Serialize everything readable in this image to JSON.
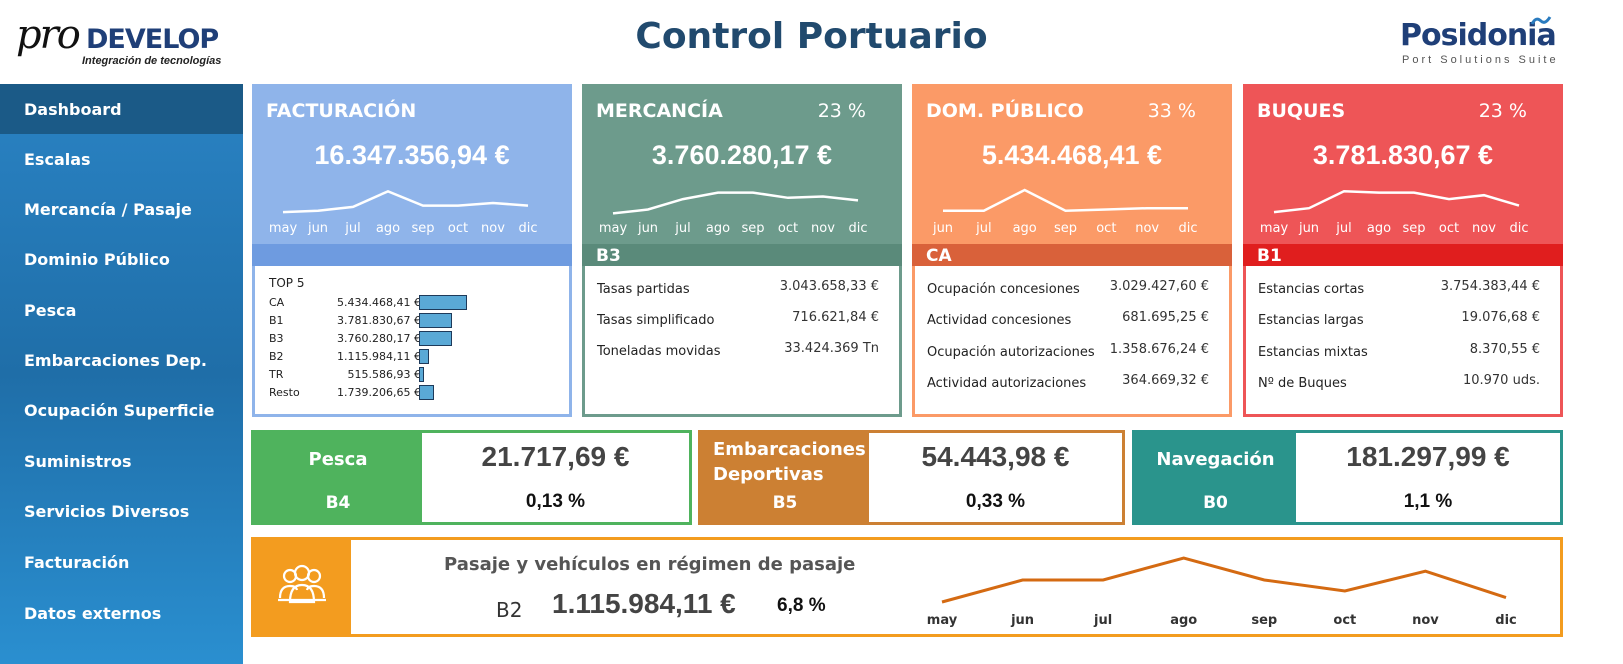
{
  "header": {
    "title": "Control Portuario",
    "logo_left_main": "pro",
    "logo_left_brand": "DEVELOP",
    "logo_left_sub": "Integración de tecnologías",
    "logo_right_main": "Posidonia",
    "logo_right_sub": "Port Solutions Suite"
  },
  "sidebar": {
    "items": [
      {
        "label": "Dashboard",
        "active": true
      },
      {
        "label": "Escalas"
      },
      {
        "label": "Mercancía / Pasaje"
      },
      {
        "label": "Dominio Público"
      },
      {
        "label": "Pesca"
      },
      {
        "label": "Embarcaciones Dep."
      },
      {
        "label": "Ocupación Superficie"
      },
      {
        "label": "Suministros"
      },
      {
        "label": "Servicios Diversos"
      },
      {
        "label": "Facturación"
      },
      {
        "label": "Datos externos"
      }
    ]
  },
  "colors": {
    "facturacion": "#8fb4ea",
    "facturacion_band": "#6e9be0",
    "mercancia": "#6d9b8c",
    "mercancia_band": "#5a8a7a",
    "dom_publico": "#fb9a67",
    "dom_publico_band": "#d9613a",
    "buques": "#ee5557",
    "buques_band": "#e01e1e",
    "pesca": "#4fb35d",
    "embarcaciones": "#cc8033",
    "navegacion": "#2a948c",
    "pasaje": "#f39c1f"
  },
  "cards": {
    "facturacion": {
      "title": "FACTURACIÓN",
      "value": "16.347.356,94 €",
      "months": [
        "may",
        "jun",
        "jul",
        "ago",
        "sep",
        "oct",
        "nov",
        "dic"
      ],
      "trend": [
        0.15,
        0.2,
        0.35,
        0.95,
        0.4,
        0.4,
        0.5,
        0.4
      ],
      "top5": {
        "title": "TOP 5",
        "rows": [
          {
            "code": "CA",
            "value": "5.434.468,41 €",
            "share": 1.0
          },
          {
            "code": "B1",
            "value": "3.781.830,67 €",
            "share": 0.696
          },
          {
            "code": "B3",
            "value": "3.760.280,17 €",
            "share": 0.692
          },
          {
            "code": "B2",
            "value": "1.115.984,11 €",
            "share": 0.205
          },
          {
            "code": "TR",
            "value": "515.586,93 €",
            "share": 0.095
          },
          {
            "code": "Resto",
            "value": "1.739.206,65 €",
            "share": 0.32
          }
        ]
      }
    },
    "mercancia": {
      "title": "MERCANCÍA",
      "pct": "23 %",
      "value": "3.760.280,17 €",
      "months": [
        "may",
        "jun",
        "jul",
        "ago",
        "sep",
        "oct",
        "nov",
        "dic"
      ],
      "trend": [
        0.1,
        0.25,
        0.65,
        0.9,
        0.9,
        0.7,
        0.75,
        0.6
      ],
      "band": "B3",
      "rows": [
        {
          "label": "Tasas partidas",
          "value": "3.043.658,33 €"
        },
        {
          "label": "Tasas simplificado",
          "value": "716.621,84 €"
        },
        {
          "label": "Toneladas movidas",
          "value": "33.424.369 Tn"
        }
      ]
    },
    "dom_publico": {
      "title": "DOM. PÚBLICO",
      "pct": "33 %",
      "value": "5.434.468,41 €",
      "months": [
        "jun",
        "jul",
        "ago",
        "sep",
        "oct",
        "nov",
        "dic"
      ],
      "trend": [
        0.2,
        0.2,
        1.0,
        0.2,
        0.25,
        0.3,
        0.3
      ],
      "band": "CA",
      "rows": [
        {
          "label": "Ocupación concesiones",
          "value": "3.029.427,60 €"
        },
        {
          "label": "Actividad concesiones",
          "value": "681.695,25 €"
        },
        {
          "label": "Ocupación autorizaciones",
          "value": "1.358.676,24 €"
        },
        {
          "label": "Actividad autorizaciones",
          "value": "364.669,32 €"
        }
      ]
    },
    "buques": {
      "title": "BUQUES",
      "pct": "23 %",
      "value": "3.781.830,67 €",
      "months": [
        "may",
        "jun",
        "jul",
        "ago",
        "sep",
        "oct",
        "nov",
        "dic"
      ],
      "trend": [
        0.15,
        0.3,
        0.95,
        0.9,
        0.9,
        0.65,
        0.8,
        0.4
      ],
      "band": "B1",
      "rows": [
        {
          "label": "Estancias cortas",
          "value": "3.754.383,44 €"
        },
        {
          "label": "Estancias largas",
          "value": "19.076,68 €"
        },
        {
          "label": "Estancias mixtas",
          "value": "8.370,55 €"
        },
        {
          "label": "Nº de Buques",
          "value": "10.970 uds."
        }
      ]
    }
  },
  "mini": {
    "pesca": {
      "name": "Pesca",
      "code": "B4",
      "value": "21.717,69 €",
      "pct": "0,13 %"
    },
    "embarcaciones": {
      "name": "Embarcaciones Deportivas",
      "code": "B5",
      "value": "54.443,98 €",
      "pct": "0,33 %"
    },
    "navegacion": {
      "name": "Navegación",
      "code": "B0",
      "value": "181.297,99 €",
      "pct": "1,1 %"
    }
  },
  "pasaje": {
    "title": "Pasaje y vehículos en régimen de pasaje",
    "code": "B2",
    "value": "1.115.984,11 €",
    "pct": "6,8 %",
    "icon": "people-icon",
    "months": [
      "may",
      "jun",
      "jul",
      "ago",
      "sep",
      "oct",
      "nov",
      "dic"
    ],
    "trend": [
      0.0,
      0.5,
      0.5,
      1.0,
      0.5,
      0.25,
      0.7,
      0.1
    ]
  }
}
